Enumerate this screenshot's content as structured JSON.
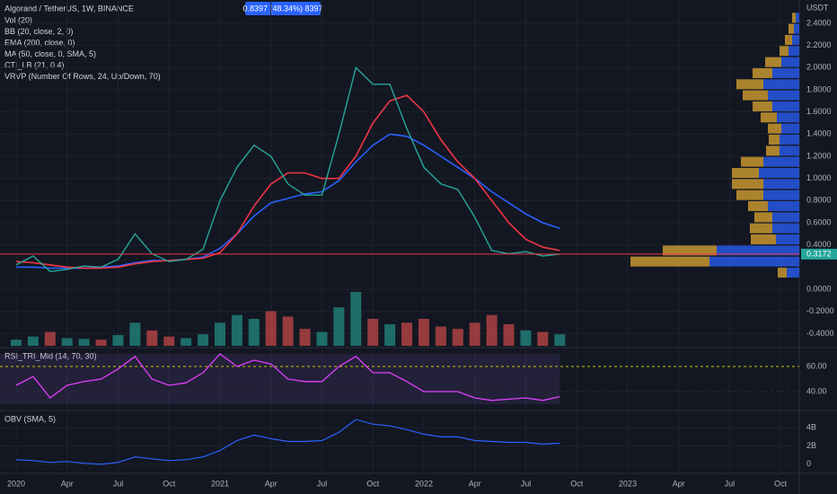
{
  "header": {
    "title": "Algorand / TetherUS, 1W, BINANCE",
    "indicators": [
      "Vol (20)",
      "BB (20, close, 2, 0)",
      "EMA (200, close, 0)",
      "MA (50, close, 0, SMA, 5)",
      "CTI_LB (21, 0.4)",
      "VRVP (Number Of Rows, 24, Up/Down, 70)"
    ],
    "tooltip": "0.8397 (48.34%) 8397"
  },
  "price_axis": {
    "unit": "USDT",
    "ylim": [
      -0.51,
      2.61
    ],
    "ticks": [
      {
        "value": 2.4,
        "label": "2.4000"
      },
      {
        "value": 2.2,
        "label": "2.2000"
      },
      {
        "value": 2.0,
        "label": "2.0000"
      },
      {
        "value": 1.8,
        "label": "1.8000"
      },
      {
        "value": 1.6,
        "label": "1.6000"
      },
      {
        "value": 1.4,
        "label": "1.4000"
      },
      {
        "value": 1.2,
        "label": "1.2000"
      },
      {
        "value": 1.0,
        "label": "1.0000"
      },
      {
        "value": 0.8,
        "label": "0.8000"
      },
      {
        "value": 0.6,
        "label": "0.6000"
      },
      {
        "value": 0.4,
        "label": "0.4000"
      },
      {
        "value": 0,
        "label": "0.0000"
      },
      {
        "value": -0.2,
        "label": "-0.2000"
      },
      {
        "value": -0.4,
        "label": "-0.4000"
      }
    ],
    "last_price": {
      "value": 0.3172,
      "label": "0.3172"
    }
  },
  "time_axis": {
    "xlim": [
      -0.95,
      46.1
    ],
    "ticks": [
      {
        "value": 0,
        "label": "2020"
      },
      {
        "value": 3,
        "label": "Apr"
      },
      {
        "value": 6,
        "label": "Jul"
      },
      {
        "value": 9,
        "label": "Oct"
      },
      {
        "value": 12,
        "label": "2021"
      },
      {
        "value": 15,
        "label": "Apr"
      },
      {
        "value": 18,
        "label": "Jul"
      },
      {
        "value": 21,
        "label": "Oct"
      },
      {
        "value": 24,
        "label": "2022"
      },
      {
        "value": 27,
        "label": "Apr"
      },
      {
        "value": 30,
        "label": "Jul"
      },
      {
        "value": 33,
        "label": "Oct"
      },
      {
        "value": 36,
        "label": "2023"
      },
      {
        "value": 39,
        "label": "Apr"
      },
      {
        "value": 42,
        "label": "Jul"
      },
      {
        "value": 45,
        "label": "Oct"
      }
    ]
  },
  "price": {
    "x": [
      0,
      1,
      2,
      3,
      4,
      5,
      6,
      7,
      8,
      9,
      10,
      11,
      12,
      13,
      14,
      15,
      16,
      17,
      18,
      19,
      20,
      21,
      22,
      23,
      24,
      25,
      26,
      27,
      28,
      29,
      30,
      31,
      32
    ],
    "close": [
      0.22,
      0.3,
      0.16,
      0.18,
      0.21,
      0.2,
      0.27,
      0.5,
      0.32,
      0.25,
      0.27,
      0.36,
      0.8,
      1.1,
      1.3,
      1.2,
      0.95,
      0.85,
      0.85,
      1.4,
      2.0,
      1.85,
      1.85,
      1.45,
      1.1,
      0.95,
      0.9,
      0.65,
      0.35,
      0.32,
      0.34,
      0.3,
      0.3172
    ],
    "ema": [
      0.2,
      0.2,
      0.19,
      0.19,
      0.19,
      0.2,
      0.21,
      0.24,
      0.26,
      0.26,
      0.27,
      0.29,
      0.37,
      0.5,
      0.66,
      0.78,
      0.82,
      0.86,
      0.88,
      0.98,
      1.15,
      1.3,
      1.4,
      1.38,
      1.3,
      1.2,
      1.1,
      1.0,
      0.88,
      0.78,
      0.68,
      0.6,
      0.55
    ],
    "ma": [
      0.25,
      0.24,
      0.22,
      0.2,
      0.19,
      0.19,
      0.2,
      0.23,
      0.25,
      0.26,
      0.27,
      0.28,
      0.33,
      0.5,
      0.75,
      0.95,
      1.05,
      1.05,
      1.0,
      1.0,
      1.2,
      1.5,
      1.7,
      1.75,
      1.6,
      1.35,
      1.15,
      1.0,
      0.8,
      0.6,
      0.45,
      0.38,
      0.35
    ],
    "volume": [
      8,
      12,
      18,
      10,
      9,
      8,
      14,
      30,
      20,
      12,
      10,
      15,
      30,
      40,
      35,
      45,
      38,
      22,
      18,
      50,
      70,
      35,
      28,
      30,
      35,
      25,
      22,
      30,
      40,
      28,
      20,
      18,
      15
    ]
  },
  "rsi": {
    "title": "RSI_TRI_Mid (14, 70, 30)",
    "ylim": [
      25,
      75
    ],
    "ticks": [
      {
        "value": 60,
        "label": "60.00"
      },
      {
        "value": 40,
        "label": "40.00"
      }
    ],
    "values": [
      45,
      52,
      35,
      45,
      48,
      50,
      58,
      68,
      50,
      45,
      47,
      55,
      70,
      60,
      65,
      62,
      50,
      48,
      48,
      60,
      68,
      55,
      55,
      48,
      40,
      40,
      40,
      35,
      33,
      34,
      35,
      33,
      36
    ]
  },
  "obv": {
    "title": "OBV (SMA, 5)",
    "ylim": [
      -1,
      5.9
    ],
    "ticks": [
      {
        "value": 4,
        "label": "4B"
      },
      {
        "value": 2,
        "label": "2B"
      },
      {
        "value": 0,
        "label": "0"
      }
    ],
    "values": [
      0.5,
      0.4,
      0.2,
      0.3,
      0.1,
      0,
      0.2,
      0.8,
      0.6,
      0.4,
      0.5,
      0.8,
      1.5,
      2.6,
      3.2,
      2.8,
      2.5,
      2.5,
      2.6,
      3.5,
      4.9,
      4.4,
      4.2,
      3.8,
      3.3,
      3.0,
      3.0,
      2.6,
      2.5,
      2.4,
      2.4,
      2.2,
      2.3
    ]
  },
  "volume_profile": {
    "rows": [
      {
        "price": 2.45,
        "up": 4,
        "down": 4
      },
      {
        "price": 2.35,
        "up": 6,
        "down": 6
      },
      {
        "price": 2.25,
        "up": 8,
        "down": 8
      },
      {
        "price": 2.15,
        "up": 10,
        "down": 12
      },
      {
        "price": 2.05,
        "up": 18,
        "down": 20
      },
      {
        "price": 1.95,
        "up": 22,
        "down": 30
      },
      {
        "price": 1.85,
        "up": 30,
        "down": 40
      },
      {
        "price": 1.75,
        "up": 28,
        "down": 35
      },
      {
        "price": 1.65,
        "up": 22,
        "down": 30
      },
      {
        "price": 1.55,
        "up": 18,
        "down": 25
      },
      {
        "price": 1.45,
        "up": 15,
        "down": 20
      },
      {
        "price": 1.35,
        "up": 12,
        "down": 22
      },
      {
        "price": 1.25,
        "up": 15,
        "down": 22
      },
      {
        "price": 1.15,
        "up": 25,
        "down": 40
      },
      {
        "price": 1.05,
        "up": 30,
        "down": 45
      },
      {
        "price": 0.95,
        "up": 35,
        "down": 40
      },
      {
        "price": 0.85,
        "up": 30,
        "down": 40
      },
      {
        "price": 0.75,
        "up": 22,
        "down": 35
      },
      {
        "price": 0.65,
        "up": 20,
        "down": 30
      },
      {
        "price": 0.55,
        "up": 25,
        "down": 30
      },
      {
        "price": 0.45,
        "up": 28,
        "down": 26
      },
      {
        "price": 0.35,
        "up": 60,
        "down": 92
      },
      {
        "price": 0.25,
        "up": 88,
        "down": 100
      },
      {
        "price": 0.15,
        "up": 10,
        "down": 14
      }
    ]
  }
}
